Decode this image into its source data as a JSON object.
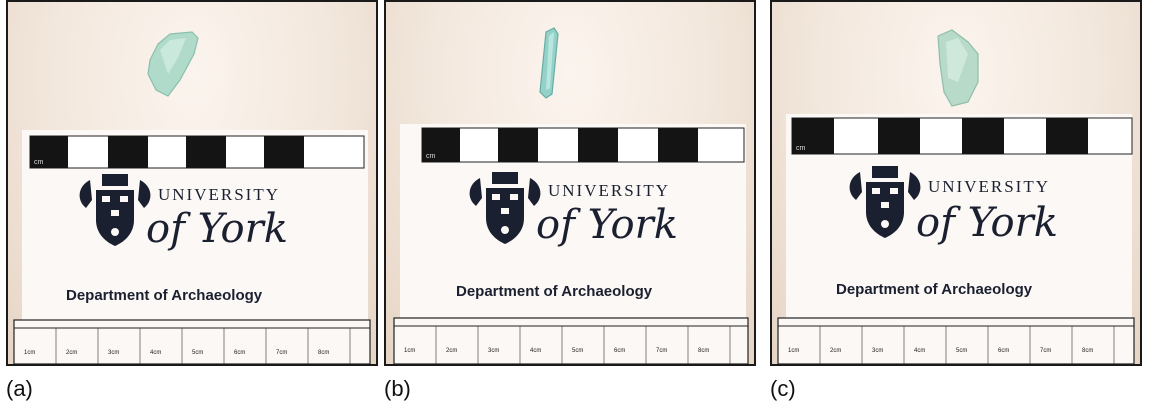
{
  "panels": [
    {
      "caption": "(a)",
      "card": {
        "scale_unit": "cm",
        "brand_line1": "UNIVERSITY",
        "brand_line2": "of York",
        "department": "Department of Archaeology",
        "ruler_labels": [
          "1cm",
          "2cm",
          "3cm",
          "4cm",
          "5cm",
          "6cm",
          "7cm",
          "8cm"
        ]
      }
    },
    {
      "caption": "(b)",
      "card": {
        "scale_unit": "cm",
        "brand_line1": "UNIVERSITY",
        "brand_line2": "of York",
        "department": "Department of Archaeology",
        "ruler_labels": [
          "1cm",
          "2cm",
          "3cm",
          "4cm",
          "5cm",
          "6cm",
          "7cm",
          "8cm"
        ]
      }
    },
    {
      "caption": "(c)",
      "card": {
        "scale_unit": "cm",
        "brand_line1": "UNIVERSITY",
        "brand_line2": "of York",
        "department": "Department of Archaeology",
        "ruler_labels": [
          "1cm",
          "2cm",
          "3cm",
          "4cm",
          "5cm",
          "6cm",
          "7cm",
          "8cm"
        ]
      }
    }
  ]
}
